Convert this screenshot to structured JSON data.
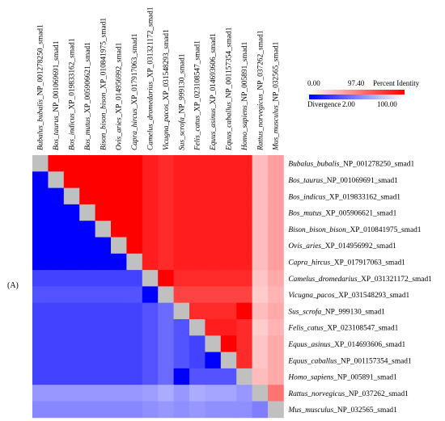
{
  "panel_label": "(A)",
  "legend": {
    "min_label": "0.00",
    "pi_label": "97.40",
    "pi_title": "Percent Identity",
    "div_title": "Divergence",
    "div_label": "2.00",
    "max_label": "100.00",
    "colors": {
      "identity": "#ff0000",
      "divergence": "#0000ff",
      "low": "#ffffff",
      "diagonal": "#c0c0c0"
    }
  },
  "chart_data": {
    "type": "heatmap",
    "title": "",
    "upper_triangle": "Percent Identity",
    "lower_triangle": "Divergence",
    "identity_scale": [
      0.0,
      100.0
    ],
    "divergence_scale": [
      0.0,
      2.0
    ],
    "labels": [
      {
        "genus": "Bubalus",
        "species": "bubalis",
        "acc": "NP_001278250_smad1"
      },
      {
        "genus": "Bos",
        "species": "taurus",
        "acc": "NP_001069691_smad1"
      },
      {
        "genus": "Bos",
        "species": "indicus",
        "acc": "XP_019833162_smad1"
      },
      {
        "genus": "Bos",
        "species": "mutus",
        "acc": "XP_005906621_smad1"
      },
      {
        "genus": "Bison",
        "species": "bison_bison",
        "acc": "XP_010841975_smad1"
      },
      {
        "genus": "Ovis",
        "species": "aries",
        "acc": "XP_014956992_smad1"
      },
      {
        "genus": "Capra",
        "species": "hircus",
        "acc": "XP_017917063_smad1"
      },
      {
        "genus": "Camelus",
        "species": "dromedarius",
        "acc": "XP_031321172_smad1"
      },
      {
        "genus": "Vicugna",
        "species": "pacos",
        "acc": "XP_031548293_smad1"
      },
      {
        "genus": "Sus",
        "species": "scrofa",
        "acc": "NP_999130_smad1"
      },
      {
        "genus": "Felis",
        "species": "catus",
        "acc": "XP_023108547_smad1"
      },
      {
        "genus": "Equus",
        "species": "asinus",
        "acc": "XP_014693606_smad1"
      },
      {
        "genus": "Equus",
        "species": "caballus",
        "acc": "NP_001157354_smad1"
      },
      {
        "genus": "Homo",
        "species": "sapiens",
        "acc": "NP_005891_smad1"
      },
      {
        "genus": "Rattus",
        "species": "norvegicus",
        "acc": "NP_037262_smad1"
      },
      {
        "genus": "Mus",
        "species": "musculus",
        "acc": "NP_032565_smad1"
      }
    ],
    "matrix": [
      [
        null,
        100,
        100,
        100,
        100,
        100,
        100,
        99.8,
        99.7,
        99.8,
        99.8,
        99.8,
        99.8,
        99.8,
        97.8,
        98.4
      ],
      [
        0.0,
        null,
        100,
        100,
        100,
        100,
        100,
        99.8,
        99.7,
        99.8,
        99.8,
        99.8,
        99.8,
        99.8,
        97.8,
        98.4
      ],
      [
        0.0,
        0.0,
        null,
        100,
        100,
        100,
        100,
        99.8,
        99.7,
        99.8,
        99.8,
        99.8,
        99.8,
        99.8,
        97.8,
        98.4
      ],
      [
        0.0,
        0.0,
        0.0,
        null,
        100,
        100,
        100,
        99.8,
        99.7,
        99.8,
        99.8,
        99.8,
        99.8,
        99.8,
        97.8,
        98.4
      ],
      [
        0.0,
        0.0,
        0.0,
        0.0,
        null,
        100,
        100,
        99.8,
        99.7,
        99.8,
        99.8,
        99.8,
        99.8,
        99.8,
        97.8,
        98.4
      ],
      [
        0.0,
        0.0,
        0.0,
        0.0,
        0.0,
        null,
        100,
        99.8,
        99.7,
        99.8,
        99.8,
        99.8,
        99.8,
        99.8,
        97.8,
        98.4
      ],
      [
        0.0,
        0.0,
        0.0,
        0.0,
        0.0,
        0.0,
        null,
        99.8,
        99.7,
        99.8,
        99.8,
        99.8,
        99.8,
        99.8,
        97.8,
        98.4
      ],
      [
        0.2,
        0.2,
        0.2,
        0.2,
        0.2,
        0.2,
        0.2,
        null,
        100,
        99.7,
        99.7,
        99.7,
        99.7,
        99.7,
        97.6,
        98.2
      ],
      [
        0.3,
        0.3,
        0.3,
        0.3,
        0.3,
        0.3,
        0.3,
        0.0,
        null,
        99.5,
        99.5,
        99.5,
        99.5,
        99.5,
        97.4,
        98.0
      ],
      [
        0.2,
        0.2,
        0.2,
        0.2,
        0.2,
        0.2,
        0.2,
        0.3,
        0.5,
        null,
        99.7,
        99.7,
        99.7,
        100,
        97.8,
        98.2
      ],
      [
        0.2,
        0.2,
        0.2,
        0.2,
        0.2,
        0.2,
        0.2,
        0.3,
        0.5,
        0.3,
        null,
        99.8,
        99.8,
        99.7,
        97.4,
        98.0
      ],
      [
        0.2,
        0.2,
        0.2,
        0.2,
        0.2,
        0.2,
        0.2,
        0.3,
        0.5,
        0.3,
        0.2,
        null,
        100,
        99.7,
        97.6,
        98.2
      ],
      [
        0.2,
        0.2,
        0.2,
        0.2,
        0.2,
        0.2,
        0.2,
        0.3,
        0.5,
        0.3,
        0.2,
        0.0,
        null,
        99.7,
        97.6,
        98.2
      ],
      [
        0.2,
        0.2,
        0.2,
        0.2,
        0.2,
        0.2,
        0.2,
        0.3,
        0.5,
        0.0,
        0.3,
        0.3,
        0.3,
        null,
        97.8,
        98.2
      ],
      [
        1.0,
        1.0,
        1.0,
        1.0,
        1.0,
        1.0,
        1.0,
        1.1,
        1.3,
        1.0,
        1.3,
        1.2,
        1.2,
        1.0,
        null,
        99.0
      ],
      [
        0.8,
        0.8,
        0.8,
        0.8,
        0.8,
        0.8,
        0.8,
        0.9,
        1.0,
        0.9,
        1.0,
        0.9,
        0.9,
        0.9,
        0.7,
        null
      ]
    ]
  }
}
